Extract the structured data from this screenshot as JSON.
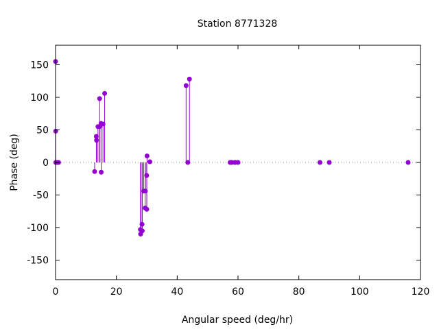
{
  "chart_data": {
    "type": "scatter",
    "style": "impulses-with-points",
    "title": "Station 8771328",
    "xlabel": "Angular speed (deg/hr)",
    "ylabel": "Phase (deg)",
    "xlim": [
      0,
      120
    ],
    "ylim": [
      -180,
      180
    ],
    "xticks": [
      0,
      20,
      40,
      60,
      80,
      100,
      120
    ],
    "yticks": [
      -150,
      -100,
      -50,
      0,
      50,
      100,
      150
    ],
    "xtick_labels": [
      "0",
      "20",
      "40",
      "60",
      "80",
      "100",
      "120"
    ],
    "ytick_labels": [
      "-150",
      "-100",
      "-50",
      "0",
      "50",
      "100",
      "150"
    ],
    "zero_line": "dotted",
    "grid": false,
    "color": "#9400d3",
    "points": [
      {
        "x": 0.0,
        "y": 155
      },
      {
        "x": 0.04,
        "y": 48
      },
      {
        "x": 0.08,
        "y": 0
      },
      {
        "x": 0.5,
        "y": 0
      },
      {
        "x": 1.0,
        "y": 0
      },
      {
        "x": 12.85,
        "y": -14
      },
      {
        "x": 13.4,
        "y": 40
      },
      {
        "x": 13.47,
        "y": 34
      },
      {
        "x": 13.94,
        "y": 55
      },
      {
        "x": 14.49,
        "y": 98
      },
      {
        "x": 14.58,
        "y": 55
      },
      {
        "x": 14.96,
        "y": 60
      },
      {
        "x": 15.0,
        "y": -15
      },
      {
        "x": 15.59,
        "y": 59
      },
      {
        "x": 16.14,
        "y": 106
      },
      {
        "x": 27.9,
        "y": -103
      },
      {
        "x": 27.97,
        "y": -110
      },
      {
        "x": 28.44,
        "y": -95
      },
      {
        "x": 28.51,
        "y": -105
      },
      {
        "x": 28.98,
        "y": -44
      },
      {
        "x": 29.46,
        "y": -70
      },
      {
        "x": 29.53,
        "y": -44
      },
      {
        "x": 29.96,
        "y": -20
      },
      {
        "x": 30.0,
        "y": -72
      },
      {
        "x": 30.08,
        "y": 10
      },
      {
        "x": 31.02,
        "y": 1
      },
      {
        "x": 42.93,
        "y": 118
      },
      {
        "x": 43.48,
        "y": 0
      },
      {
        "x": 44.03,
        "y": 128
      },
      {
        "x": 57.42,
        "y": 0
      },
      {
        "x": 57.97,
        "y": 0
      },
      {
        "x": 58.98,
        "y": 0
      },
      {
        "x": 59.07,
        "y": 0
      },
      {
        "x": 60.0,
        "y": 0
      },
      {
        "x": 86.95,
        "y": 0
      },
      {
        "x": 90.0,
        "y": 0
      },
      {
        "x": 115.94,
        "y": 0
      }
    ]
  }
}
